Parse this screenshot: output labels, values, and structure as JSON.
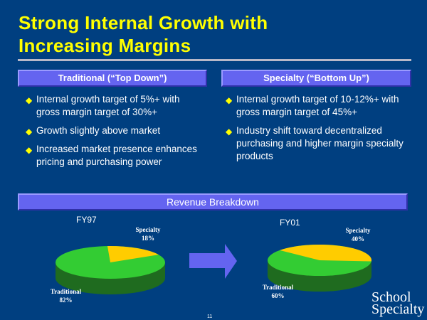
{
  "title": {
    "line1": "Strong Internal Growth with",
    "line2": "Increasing Margins"
  },
  "left": {
    "header": "Traditional (“Top Down”)",
    "bullets": [
      "Internal growth target of 5%+ with gross margin target of 30%+",
      "Growth slightly above market",
      "Increased market presence enhances pricing and purchasing power"
    ]
  },
  "right": {
    "header": "Specialty (“Bottom Up”)",
    "bullets": [
      "Internal growth target of 10-12%+ with gross margin target of 45%+",
      "Industry shift toward decentralized purchasing and higher margin specialty products"
    ]
  },
  "revenue_header": "Revenue Breakdown",
  "page_number": "11",
  "logo": {
    "line1": "School",
    "line2": "Specialty"
  },
  "bullet_icon": "diamond-icon",
  "colors": {
    "background": "#003f80",
    "title": "#ffff00",
    "traditional": "#33cc33",
    "specialty": "#ffcc00"
  },
  "chart_data": [
    {
      "type": "pie",
      "title": "FY97",
      "categories": [
        "Specialty",
        "Traditional"
      ],
      "values": [
        18,
        82
      ],
      "labels": [
        "Specialty 18%",
        "Traditional 82%"
      ],
      "label_text": {
        "specialty": [
          "Specialty",
          "18%"
        ],
        "traditional": [
          "Traditional",
          "82%"
        ]
      }
    },
    {
      "type": "pie",
      "title": "FY01",
      "categories": [
        "Specialty",
        "Traditional"
      ],
      "values": [
        40,
        60
      ],
      "labels": [
        "Specialty 40%",
        "Traditional 60%"
      ],
      "label_text": {
        "specialty": [
          "Specialty",
          "40%"
        ],
        "traditional": [
          "Traditional",
          "60%"
        ]
      }
    }
  ]
}
